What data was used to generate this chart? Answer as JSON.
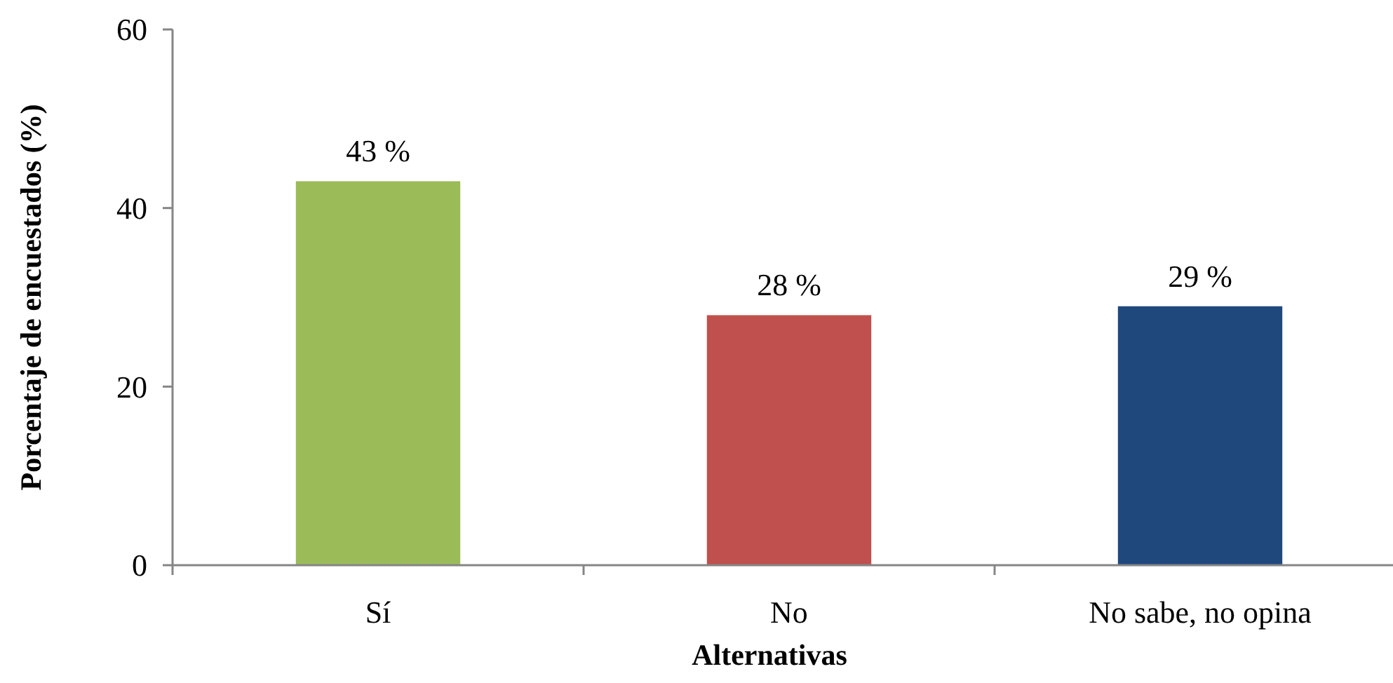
{
  "chart_data": {
    "type": "bar",
    "xlabel": "Alternativas",
    "ylabel": "Porcentaje de encuestados (%)",
    "categories": [
      "Sí",
      "No",
      "No sabe, no opina"
    ],
    "values": [
      43,
      28,
      29
    ],
    "colors": [
      "#9bbb59",
      "#c0504d",
      "#1f497d"
    ],
    "value_labels": [
      "43 %",
      "28 %",
      "29 %"
    ],
    "ylim": [
      0,
      60
    ],
    "yticks": [
      0,
      20,
      40,
      60
    ]
  }
}
